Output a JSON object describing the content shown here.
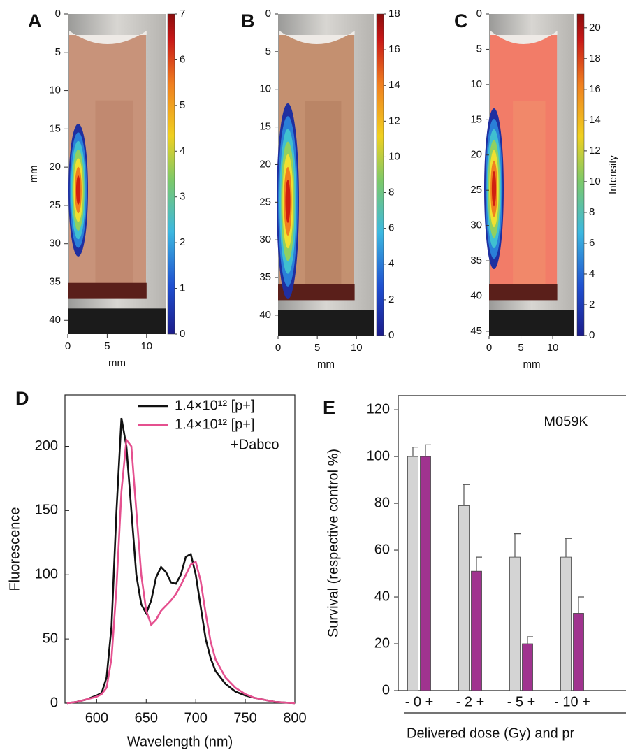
{
  "chart_data": [
    {
      "type": "image",
      "panel_label": "A",
      "xlabel": "mm",
      "ylabel": "mm",
      "xlim": [
        0,
        12.5
      ],
      "xticks": [
        0,
        5,
        10
      ],
      "ylim": [
        41.8,
        0
      ],
      "yticks": [
        0,
        5,
        10,
        15,
        20,
        25,
        30,
        35,
        40
      ],
      "clim": [
        0,
        7
      ],
      "cticks": [
        0,
        1,
        2,
        3,
        4,
        5,
        6,
        7
      ]
    },
    {
      "type": "image",
      "panel_label": "B",
      "xlabel": "mm",
      "xlim": [
        0,
        12.2
      ],
      "xticks": [
        0,
        5,
        10
      ],
      "ylim": [
        42.7,
        0
      ],
      "yticks": [
        0,
        5,
        10,
        15,
        20,
        25,
        30,
        35,
        40
      ],
      "clim": [
        0,
        18
      ],
      "cticks": [
        0,
        2,
        4,
        6,
        8,
        10,
        12,
        14,
        16,
        18
      ]
    },
    {
      "type": "image",
      "panel_label": "C",
      "xlabel": "mm",
      "clabel": "Intensity",
      "xlim": [
        0,
        13.4
      ],
      "xticks": [
        0,
        5,
        10
      ],
      "ylim": [
        45.6,
        0
      ],
      "yticks": [
        0,
        5,
        10,
        15,
        20,
        25,
        30,
        35,
        40,
        45
      ],
      "clim": [
        0,
        20.9
      ],
      "cticks": [
        0,
        2,
        4,
        6,
        8,
        10,
        12,
        14,
        16,
        18,
        20
      ]
    },
    {
      "type": "line",
      "panel_label": "D",
      "xlabel": "Wavelength (nm)",
      "ylabel": "Fluorescence",
      "xlim": [
        568,
        800
      ],
      "xticks": [
        600,
        650,
        700,
        750,
        800
      ],
      "ylim": [
        0,
        240
      ],
      "yticks": [
        0,
        50,
        100,
        150,
        200
      ],
      "x": [
        570,
        580,
        590,
        600,
        605,
        610,
        615,
        620,
        625,
        630,
        635,
        640,
        645,
        650,
        655,
        660,
        665,
        670,
        675,
        680,
        685,
        690,
        695,
        700,
        705,
        710,
        715,
        720,
        730,
        740,
        750,
        760,
        780,
        800
      ],
      "series": [
        {
          "name": "1.4×10¹² [p+]",
          "color": "#111111",
          "values": [
            0,
            1,
            3,
            6,
            8,
            20,
            60,
            150,
            222,
            200,
            150,
            100,
            77,
            70,
            80,
            98,
            106,
            102,
            94,
            93,
            100,
            114,
            116,
            100,
            75,
            50,
            35,
            25,
            15,
            9,
            6,
            4,
            1,
            0
          ]
        },
        {
          "name": "1.4×10¹² [p+]",
          "name_suffix": "+Dabco",
          "color": "#e5508f",
          "values": [
            0,
            1,
            3,
            5,
            7,
            12,
            35,
            90,
            165,
            205,
            200,
            150,
            100,
            72,
            61,
            65,
            72,
            76,
            80,
            85,
            92,
            100,
            108,
            110,
            95,
            70,
            48,
            34,
            20,
            12,
            7,
            4,
            1,
            0
          ]
        }
      ]
    },
    {
      "type": "bar",
      "panel_label": "E",
      "annotation": "M059K",
      "xlabel": "Delivered dose (Gy) and pr",
      "ylabel": "Survival (respective control %)",
      "ylim": [
        0,
        126
      ],
      "yticks": [
        0,
        20,
        40,
        60,
        80,
        100,
        120
      ],
      "categories": [
        "- 0 +",
        "- 2 +",
        "- 5 +",
        "- 10 +"
      ],
      "series": [
        {
          "color": "#d4d4d4",
          "values": [
            100,
            79,
            57,
            57
          ],
          "errors": [
            4,
            9,
            10,
            8
          ]
        },
        {
          "color": "#a0338f",
          "values": [
            100,
            51,
            20,
            33
          ],
          "errors": [
            5,
            6,
            3,
            7
          ]
        }
      ]
    }
  ]
}
